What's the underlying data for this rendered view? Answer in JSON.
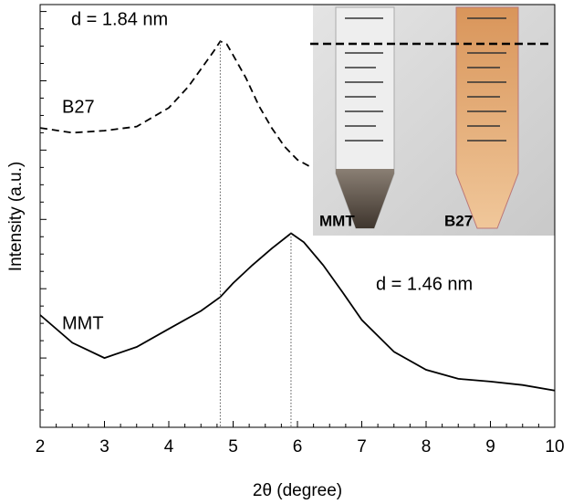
{
  "chart_data": {
    "type": "line",
    "x_label": "2θ (degree)",
    "y_label": "Intensity (a.u.)",
    "xlim": [
      2,
      10
    ],
    "xticks": [
      2,
      3,
      4,
      5,
      6,
      7,
      8,
      9,
      10
    ],
    "ylim": [
      0,
      6.1
    ],
    "yticks": [
      0,
      1,
      2,
      3,
      4,
      5,
      6
    ],
    "series": [
      {
        "name": "B27",
        "color": "#000000",
        "line_style": "dashed",
        "x": [
          2,
          2.5,
          3,
          3.5,
          4,
          4.3,
          4.5,
          4.7,
          4.8,
          4.9,
          5.0,
          5.2,
          5.4,
          5.6,
          5.8,
          6.0,
          6.2
        ],
        "values": [
          4.32,
          4.25,
          4.28,
          4.34,
          4.61,
          4.91,
          5.17,
          5.43,
          5.57,
          5.53,
          5.37,
          5.04,
          4.64,
          4.32,
          4.05,
          3.86,
          3.76
        ]
      },
      {
        "name": "MMT",
        "color": "#000000",
        "line_style": "solid",
        "x": [
          2,
          2.5,
          3,
          3.5,
          4,
          4.5,
          4.8,
          5.0,
          5.3,
          5.6,
          5.9,
          6.1,
          6.4,
          6.7,
          7.0,
          7.5,
          8,
          8.5,
          9,
          9.5,
          10
        ],
        "values": [
          1.62,
          1.22,
          1.0,
          1.16,
          1.42,
          1.68,
          1.88,
          2.08,
          2.34,
          2.58,
          2.8,
          2.67,
          2.34,
          1.95,
          1.55,
          1.09,
          0.83,
          0.7,
          0.66,
          0.61,
          0.53
        ]
      }
    ],
    "reference_lines": [
      4.8,
      5.9
    ],
    "annotations": [
      "d = 1.84 nm",
      "d = 1.46 nm"
    ],
    "inset": {
      "labels": [
        "MMT",
        "B27"
      ]
    }
  }
}
